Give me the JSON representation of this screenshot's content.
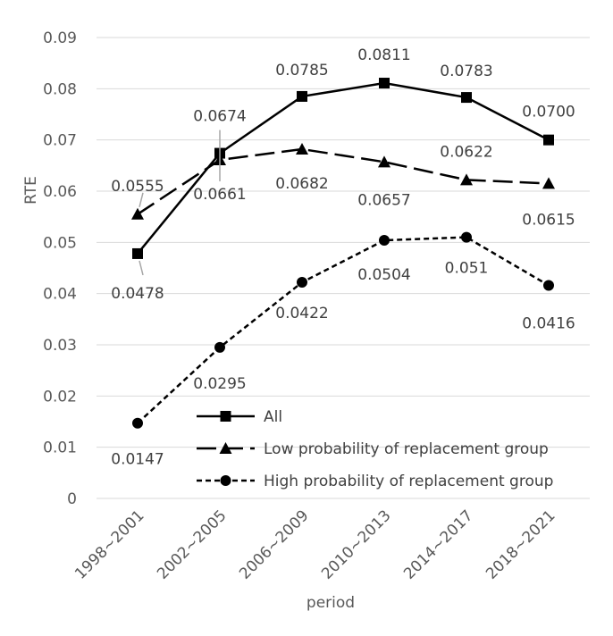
{
  "chart_data": {
    "type": "line",
    "title": "",
    "xlabel": "period",
    "ylabel": "RTE",
    "ylim": [
      0,
      0.09
    ],
    "yticks": [
      0,
      0.01,
      0.02,
      0.03,
      0.04,
      0.05,
      0.06,
      0.07,
      0.08,
      0.09
    ],
    "ytick_labels": [
      "0",
      "0.01",
      "0.02",
      "0.03",
      "0.04",
      "0.05",
      "0.06",
      "0.07",
      "0.08",
      "0.09"
    ],
    "grid": "horizontal",
    "legend_position": "bottom-right",
    "categories": [
      "1998~2001",
      "2002~2005",
      "2006~2009",
      "2010~2013",
      "2014~2017",
      "2018~2021"
    ],
    "series": [
      {
        "name": "All",
        "values": [
          0.0478,
          0.0674,
          0.0785,
          0.0811,
          0.0783,
          0.07
        ],
        "labels": [
          "0.0478",
          "0.0674",
          "0.0785",
          "0.0811",
          "0.0783",
          "0.0700"
        ],
        "marker": "square",
        "line_style": "solid",
        "color": "#000000"
      },
      {
        "name": "Low probability of replacement group",
        "values": [
          0.0555,
          0.0661,
          0.0682,
          0.0657,
          0.0622,
          0.0615
        ],
        "labels": [
          "0.0555",
          "0.0661",
          "0.0682",
          "0.0657",
          "0.0622",
          "0.0615"
        ],
        "marker": "triangle",
        "line_style": "long-dash",
        "color": "#000000"
      },
      {
        "name": "High probability of replacement group",
        "values": [
          0.0147,
          0.0295,
          0.0422,
          0.0504,
          0.051,
          0.0416
        ],
        "labels": [
          "0.0147",
          "0.0295",
          "0.0422",
          "0.0504",
          "0.051",
          "0.0416"
        ],
        "marker": "circle",
        "line_style": "short-dash",
        "color": "#000000"
      }
    ]
  }
}
